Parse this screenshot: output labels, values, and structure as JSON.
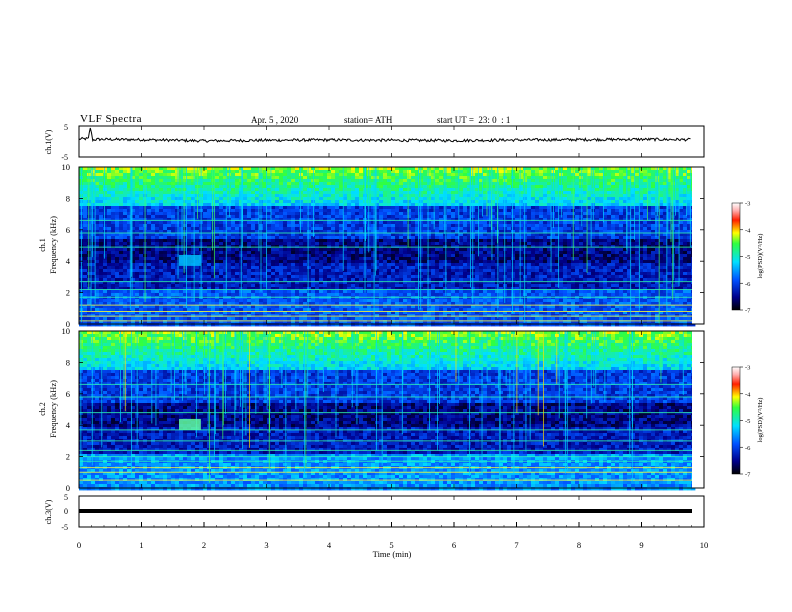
{
  "header": {
    "title": "VLF Spectra",
    "date": "Apr. 5 , 2020",
    "station": "station= ATH",
    "start": "start UT =  23: 0  : 1"
  },
  "chart_data": [
    {
      "type": "line",
      "panel": "ch1-waveform",
      "ylabel": "ch.1(V)",
      "ylim": [
        -5,
        5
      ],
      "yticks": [
        "5",
        "-5"
      ],
      "series": [
        {
          "x": [
            0,
            0.15,
            0.18,
            0.22,
            0.3,
            1,
            2,
            3,
            4,
            5,
            6,
            7,
            8,
            9,
            9.8
          ],
          "values": [
            0.8,
            0.9,
            4.5,
            0.5,
            0.7,
            0.6,
            0.2,
            0.4,
            0.5,
            0.4,
            0.3,
            0.5,
            0.6,
            0.7,
            0.6
          ]
        }
      ]
    },
    {
      "type": "heatmap",
      "panel": "ch1-spectrogram",
      "ylabel": "ch.1 Frequency (kHz)",
      "ylim": [
        0,
        10
      ],
      "yticks": [
        "0",
        "2",
        "4",
        "6",
        "8",
        "10"
      ],
      "colorbar": {
        "label": "log(PSD)(V²/Hz)",
        "range": [
          -7,
          -3
        ],
        "ticks": [
          "-3",
          "-4",
          "-5",
          "-6",
          "-7"
        ]
      }
    },
    {
      "type": "heatmap",
      "panel": "ch2-spectrogram",
      "ylabel": "ch.2 Frequency (kHz)",
      "ylim": [
        0,
        10
      ],
      "yticks": [
        "0",
        "2",
        "4",
        "6",
        "8",
        "10"
      ],
      "colorbar": {
        "label": "log(PSD)(V²/Hz)",
        "range": [
          -7,
          -3
        ],
        "ticks": [
          "-3",
          "-4",
          "-5",
          "-6",
          "-7"
        ]
      }
    },
    {
      "type": "line",
      "panel": "ch3-waveform",
      "ylabel": "ch.3(V)",
      "ylim": [
        -5,
        5
      ],
      "yticks": [
        "5",
        "0",
        "-5"
      ],
      "series": [
        {
          "x": [
            0,
            9.8
          ],
          "values": [
            0,
            0
          ]
        }
      ]
    }
  ],
  "xaxis": {
    "label": "Time (min)",
    "ticks": [
      "0",
      "1",
      "2",
      "3",
      "4",
      "5",
      "6",
      "7",
      "8",
      "9",
      "10"
    ],
    "xlim": [
      0,
      10
    ]
  },
  "colors": {
    "axis": "#000000",
    "bg": "#ffffff"
  }
}
